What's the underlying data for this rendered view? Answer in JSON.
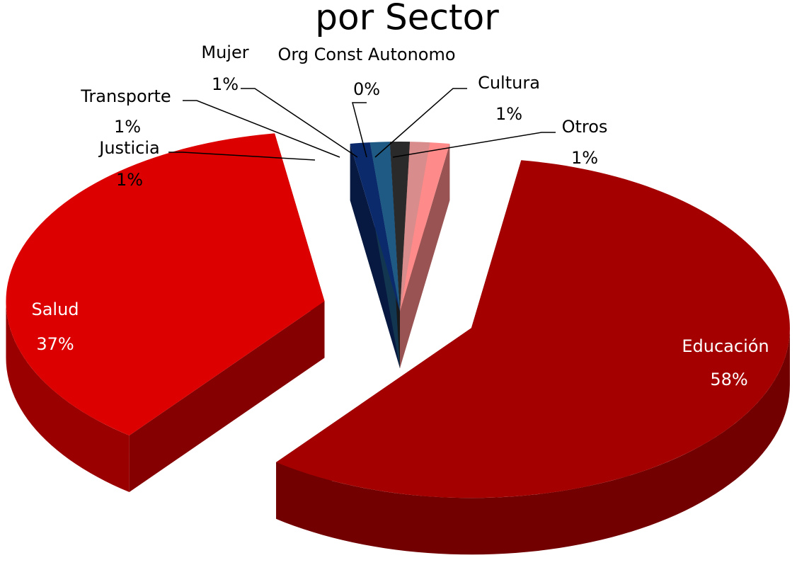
{
  "chart_data": {
    "type": "pie",
    "title": "por Sector",
    "categories": [
      "Educación",
      "Salud",
      "Justicia",
      "Transporte",
      "Mujer",
      "Org Const Autonomo",
      "Cultura",
      "Otros"
    ],
    "values": [
      58,
      37,
      1,
      1,
      1,
      0,
      1,
      1
    ],
    "value_labels": [
      "58%",
      "37%",
      "1%",
      "1%",
      "1%",
      "0%",
      "1%",
      "1%"
    ],
    "colors": [
      "#a50000",
      "#dd0000",
      "#0b2a6b",
      "#1f5a85",
      "#2a2a2a",
      "#555555",
      "#d98c8c",
      "#ff8a8a"
    ]
  }
}
